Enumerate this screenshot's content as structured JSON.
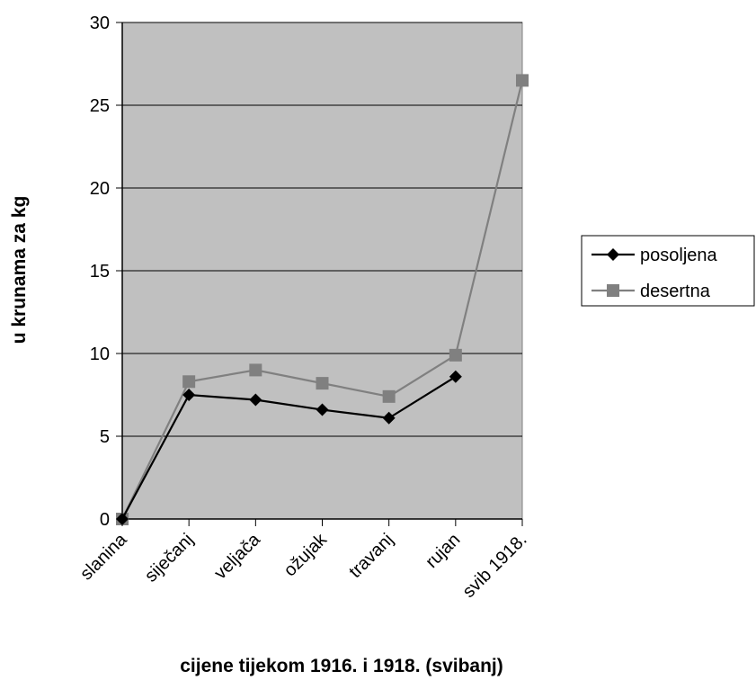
{
  "chart_data": {
    "type": "line",
    "title": "",
    "xlabel": "cijene tijekom 1916. i 1918. (svibanj)",
    "ylabel": "u krunama za kg",
    "categories": [
      "slanina",
      "siječanj",
      "veljača",
      "ožujak",
      "travanj",
      "rujan",
      "svib 1918."
    ],
    "ylim": [
      0,
      30
    ],
    "yticks": [
      0,
      5,
      10,
      15,
      20,
      25,
      30
    ],
    "grid": true,
    "legend_position": "right",
    "series": [
      {
        "name": "posoljena",
        "values": [
          0,
          7.5,
          7.2,
          6.6,
          6.1,
          8.6,
          null
        ],
        "color": "#000000",
        "marker": "diamond"
      },
      {
        "name": "desertna",
        "values": [
          0,
          8.3,
          9.0,
          8.2,
          7.4,
          9.9,
          26.5
        ],
        "color": "#808080",
        "marker": "square"
      }
    ],
    "plot_background": "#c0c0c0"
  }
}
